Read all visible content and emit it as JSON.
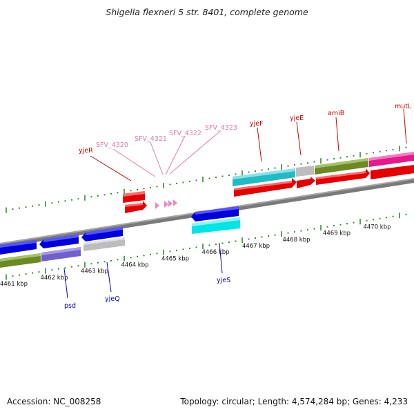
{
  "title": "Shigella flexneri 5 str. 8401, complete genome",
  "accession_text": "Accession: NC_008258",
  "topology_text": "Topology: circular; Length: 4,574,284 bp; Genes: 4,233",
  "colors": {
    "backbone": "#808080",
    "tick": "#2f8a2f",
    "label_red": "#cc0000",
    "label_pink": "#e07aa8",
    "label_blue": "#0000cc"
  },
  "ruler_labels": [
    {
      "text": "4461 kbp",
      "kbp": 4461
    },
    {
      "text": "4462 kbp",
      "kbp": 4462
    },
    {
      "text": "4463 kbp",
      "kbp": 4463
    },
    {
      "text": "4464 kbp",
      "kbp": 4464
    },
    {
      "text": "4465 kbp",
      "kbp": 4465
    },
    {
      "text": "4466 kbp",
      "kbp": 4466
    },
    {
      "text": "4467 kbp",
      "kbp": 4467
    },
    {
      "text": "4468 kbp",
      "kbp": 4468
    },
    {
      "text": "4469 kbp",
      "kbp": 4469
    },
    {
      "text": "4470 kbp",
      "kbp": 4470
    }
  ],
  "genes": [
    {
      "id": "yjeR",
      "label": "yjeR",
      "side": "top",
      "color": "#cc0000"
    },
    {
      "id": "SFV_4320",
      "label": "SFV_4320",
      "side": "top",
      "color": "#e07aa8"
    },
    {
      "id": "SFV_4321",
      "label": "SFV_4321",
      "side": "top",
      "color": "#e07aa8"
    },
    {
      "id": "SFV_4322",
      "label": "SFV_4322",
      "side": "top",
      "color": "#e07aa8"
    },
    {
      "id": "SFV_4323",
      "label": "SFV_4323",
      "side": "top",
      "color": "#e07aa8"
    },
    {
      "id": "yjeF",
      "label": "yjeF",
      "side": "top",
      "color": "#cc0000"
    },
    {
      "id": "yjeE",
      "label": "yjeE",
      "side": "top",
      "color": "#cc0000"
    },
    {
      "id": "amiB",
      "label": "amiB",
      "side": "top",
      "color": "#cc0000"
    },
    {
      "id": "mutL",
      "label": "mutL",
      "side": "top",
      "color": "#cc0000"
    },
    {
      "id": "psd",
      "label": "psd",
      "side": "bottom",
      "color": "#0000cc"
    },
    {
      "id": "yjeQ",
      "label": "yjeQ",
      "side": "bottom",
      "color": "#0000cc"
    },
    {
      "id": "yjeS",
      "label": "yjeS",
      "side": "bottom",
      "color": "#0000cc"
    }
  ]
}
